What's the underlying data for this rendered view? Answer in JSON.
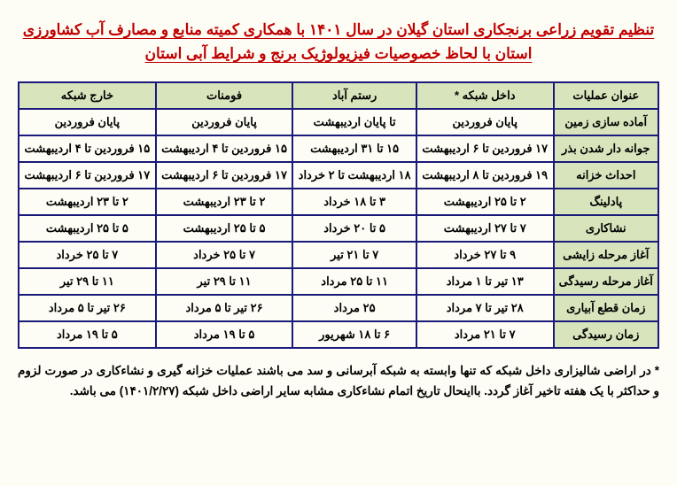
{
  "title_line1": "تنظیم تقویم زراعی برنجکاری استان گیلان در سال ۱۴۰۱ با همکاری کمیته منابع و مصارف آب کشاورزی",
  "title_line2": "استان با لحاظ خصوصیات فیزیولوژیک برنج و شرایط آبی استان",
  "columns": [
    "عنوان عملیات",
    "داخل شبکه *",
    "رستم آباد",
    "فومنات",
    "خارج شبکه"
  ],
  "rows": [
    {
      "label": "آماده سازی زمین",
      "cells": [
        "پایان فروردین",
        "تا پایان اردیبهشت",
        "پایان فروردین",
        "پایان فروردین"
      ]
    },
    {
      "label": "جوانه دار شدن بذر",
      "cells": [
        "۱۷ فروردین تا ۶ اردیبهشت",
        "۱۵ تا ۳۱ اردیبهشت",
        "۱۵ فروردین تا ۴ اردیبهشت",
        "۱۵ فروردین تا ۴ اردیبهشت"
      ]
    },
    {
      "label": "احداث خزانه",
      "cells": [
        "۱۹ فروردین تا ۸ اردیبهشت",
        "۱۸ اردیبهشت تا ۲ خرداد",
        "۱۷ فروردین تا ۶ اردیبهشت",
        "۱۷ فروردین تا ۶ اردیبهشت"
      ]
    },
    {
      "label": "پادلینگ",
      "cells": [
        "۲ تا ۲۵ اردیبهشت",
        "۳ تا ۱۸ خرداد",
        "۲ تا ۲۳ اردیبهشت",
        "۲ تا ۲۳ اردیبهشت"
      ]
    },
    {
      "label": "نشاکاری",
      "cells": [
        "۷ تا ۲۷ اردیبهشت",
        "۵ تا ۲۰ خرداد",
        "۵ تا ۲۵ اردیبهشت",
        "۵ تا ۲۵ اردیبهشت"
      ]
    },
    {
      "label": "آغاز مرحله زایشی",
      "cells": [
        "۹ تا ۲۷ خرداد",
        "۷ تا ۲۱ تیر",
        "۷ تا ۲۵ خرداد",
        "۷ تا ۲۵ خرداد"
      ]
    },
    {
      "label": "آغاز مرحله رسیدگی",
      "cells": [
        "۱۳ تیر تا ۱ مرداد",
        "۱۱ تا ۲۵ مرداد",
        "۱۱ تا ۲۹ تیر",
        "۱۱ تا ۲۹ تیر"
      ]
    },
    {
      "label": "زمان قطع آبیاری",
      "cells": [
        "۲۸ تیر تا ۷ مرداد",
        "۲۵ مرداد",
        "۲۶ تیر تا ۵ مرداد",
        "۲۶ تیر تا ۵ مرداد"
      ]
    },
    {
      "label": "زمان رسیدگی",
      "cells": [
        "۷ تا ۲۱ مرداد",
        "۶ تا ۱۸ شهریور",
        "۵ تا ۱۹ مرداد",
        "۵ تا ۱۹ مرداد"
      ]
    }
  ],
  "footnote": "* در اراضی شالیزاری داخل شبکه که تنها وابسته به شبکه آبرسانی و سد می باشند عملیات خزانه گیری و نشاءکاری در صورت لزوم و حداکثر با یک هفته تاخیر آغاز گردد. بااینحال تاریخ اتمام نشاءکاری مشابه سایر اراضی داخل شبکه (۱۴۰۱/۲/۲۷) می باشد.",
  "colors": {
    "title": "#c00000",
    "border": "#1a1a7a",
    "header_bg": "#d8e4bc",
    "page_bg": "#fdfdf5"
  }
}
